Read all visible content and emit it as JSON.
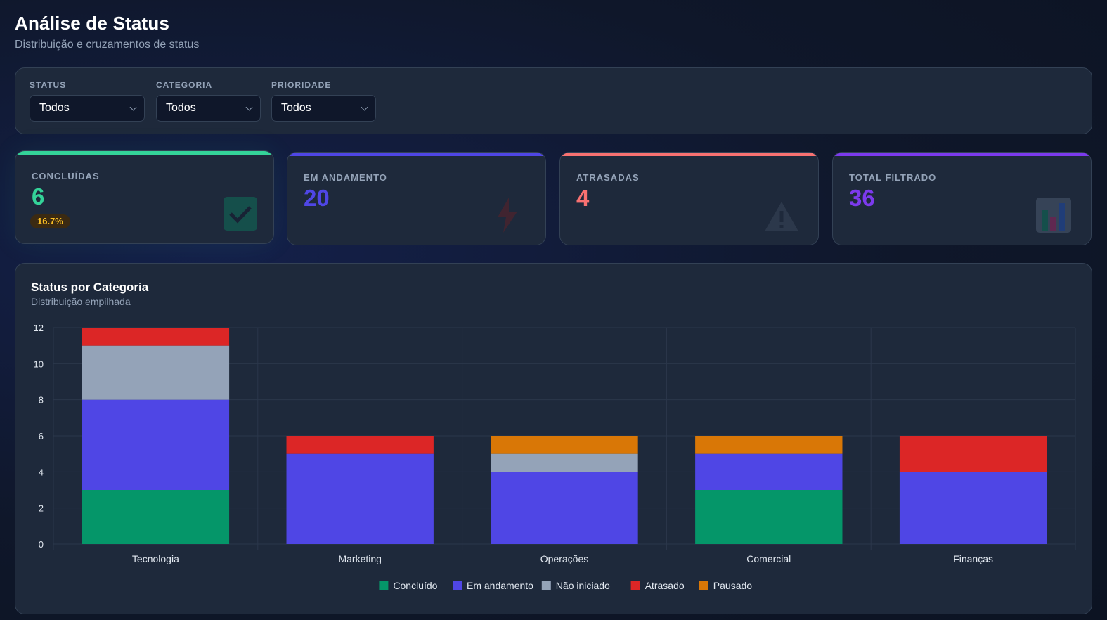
{
  "header": {
    "title": "Análise de Status",
    "subtitle": "Distribuição e cruzamentos de status"
  },
  "filters": {
    "status": {
      "label": "STATUS",
      "value": "Todos"
    },
    "categoria": {
      "label": "CATEGORIA",
      "value": "Todos"
    },
    "prioridade": {
      "label": "PRIORIDADE",
      "value": "Todos"
    }
  },
  "kpis": {
    "concluidas": {
      "label": "CONCLUÍDAS",
      "value": "6",
      "badge": "16.7%",
      "color": "#34d399",
      "icon": "check-icon"
    },
    "em_andamento": {
      "label": "EM ANDAMENTO",
      "value": "20",
      "color": "#4f46e5",
      "icon": "lightning-icon"
    },
    "atrasadas": {
      "label": "ATRASADAS",
      "value": "4",
      "color": "#f87171",
      "icon": "warning-icon"
    },
    "total": {
      "label": "TOTAL FILTRADO",
      "value": "36",
      "color": "#7c3aed",
      "icon": "bar-chart-icon"
    }
  },
  "chart": {
    "title": "Status por Categoria",
    "subtitle": "Distribuição empilhada"
  },
  "chart_data": {
    "type": "bar",
    "stacked": true,
    "categories": [
      "Tecnologia",
      "Marketing",
      "Operações",
      "Comercial",
      "Finanças"
    ],
    "series": [
      {
        "name": "Concluído",
        "color": "#059669",
        "values": [
          3,
          0,
          0,
          3,
          0
        ]
      },
      {
        "name": "Em andamento",
        "color": "#4f46e5",
        "values": [
          5,
          5,
          4,
          2,
          4
        ]
      },
      {
        "name": "Não iniciado",
        "color": "#94a3b8",
        "values": [
          3,
          0,
          1,
          0,
          0
        ]
      },
      {
        "name": "Atrasado",
        "color": "#dc2626",
        "values": [
          1,
          1,
          0,
          0,
          2
        ]
      },
      {
        "name": "Pausado",
        "color": "#d97706",
        "values": [
          0,
          0,
          1,
          1,
          0
        ]
      }
    ],
    "ylim": [
      0,
      12
    ],
    "yticks": [
      0,
      2,
      4,
      6,
      8,
      10,
      12
    ],
    "grid": true,
    "legend": "bottom"
  }
}
